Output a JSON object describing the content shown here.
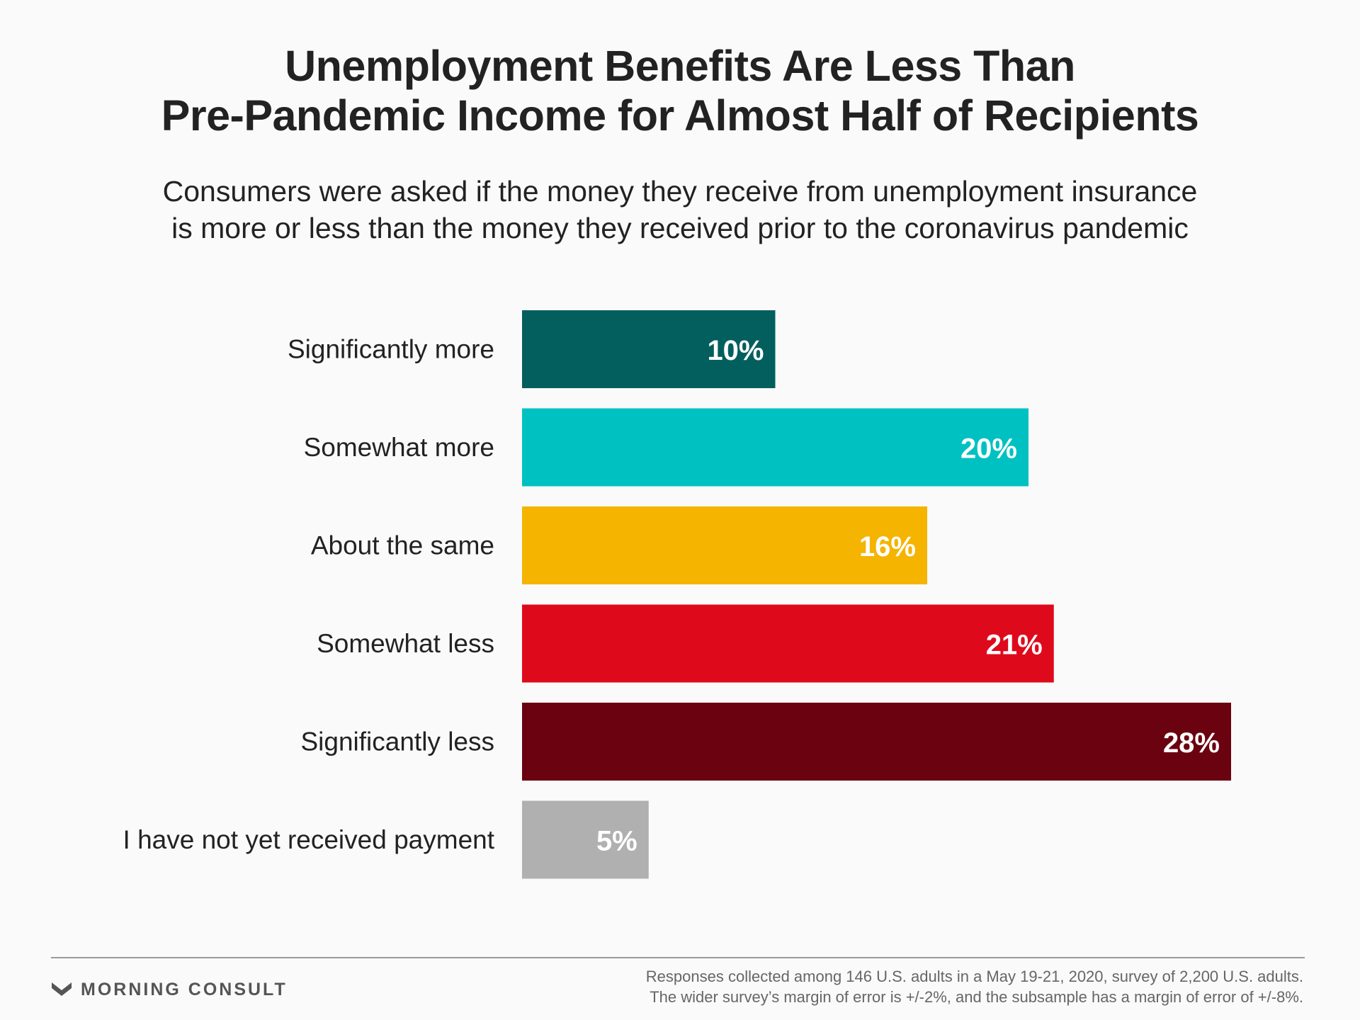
{
  "header": {
    "title_lines": [
      "Unemployment Benefits Are Less Than",
      "Pre-Pandemic Income for Almost Half of Recipients"
    ],
    "subtitle_lines": [
      "Consumers were asked if the money they receive from unemployment insurance",
      "is more or less than the money they received prior to the coronavirus pandemic"
    ]
  },
  "chart_data": {
    "type": "bar",
    "orientation": "horizontal",
    "title": "Unemployment Benefits Are Less Than Pre-Pandemic Income for Almost Half of Recipients",
    "subtitle": "Consumers were asked if the money they receive from unemployment insurance is more or less than the money they received prior to the coronavirus pandemic",
    "categories": [
      "Significantly more",
      "Somewhat more",
      "About the same",
      "Somewhat less",
      "Significantly less",
      "I have not yet received payment"
    ],
    "values": [
      10,
      20,
      16,
      21,
      28,
      5
    ],
    "value_labels": [
      "10%",
      "20%",
      "16%",
      "21%",
      "28%",
      "5%"
    ],
    "colors": [
      "#035f5e",
      "#00c1c1",
      "#f4b400",
      "#de0a1c",
      "#6b0210",
      "#b0b0b0"
    ],
    "xlim": [
      0,
      28
    ],
    "xlabel": "",
    "ylabel": "",
    "grid": false,
    "legend": "none"
  },
  "footer": {
    "brand": "MORNING CONSULT",
    "note_lines": [
      "Responses collected among 146 U.S. adults in a May 19-21, 2020, survey of 2,200 U.S. adults.",
      "The wider survey’s margin of error is +/-2%, and the subsample has a margin of error of +/-8%."
    ]
  }
}
